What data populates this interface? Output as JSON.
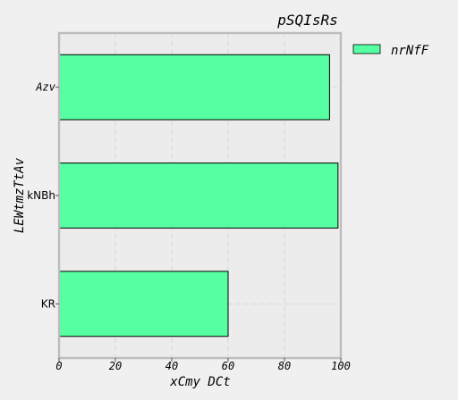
{
  "chart_data": {
    "type": "bar",
    "orientation": "horizontal",
    "title": "pSQIsRs",
    "xlabel": "xCmy DCt",
    "ylabel": "LEWtmzTtAv",
    "categories": [
      "Azv",
      "kNBh",
      "KR"
    ],
    "series": [
      {
        "name": "nrNfF",
        "values": [
          96,
          99,
          60
        ]
      }
    ],
    "xlim": [
      0,
      100
    ],
    "xticks": [
      "0",
      "20",
      "40",
      "60",
      "80",
      "100"
    ],
    "grid": true,
    "legend_position": "outside-top-right",
    "colors": {
      "bar_fill": "#55ffa2",
      "bar_edge": "#000000",
      "axes_bg": "#ececec",
      "axes_edge": "#bdbdbd",
      "grid": "#d6d6d6",
      "figure_bg": "#f0f0f0"
    }
  }
}
